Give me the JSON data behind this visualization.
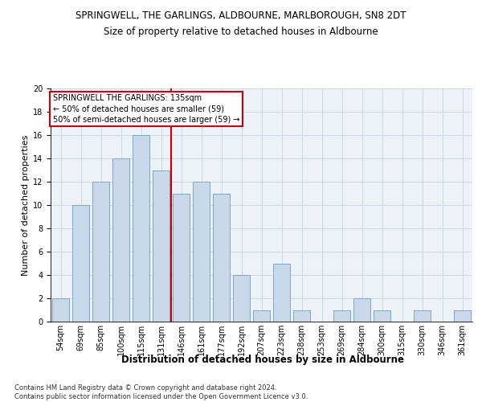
{
  "title": "SPRINGWELL, THE GARLINGS, ALDBOURNE, MARLBOROUGH, SN8 2DT",
  "subtitle": "Size of property relative to detached houses in Aldbourne",
  "xlabel": "Distribution of detached houses by size in Aldbourne",
  "ylabel": "Number of detached properties",
  "categories": [
    "54sqm",
    "69sqm",
    "85sqm",
    "100sqm",
    "115sqm",
    "131sqm",
    "146sqm",
    "161sqm",
    "177sqm",
    "192sqm",
    "207sqm",
    "223sqm",
    "238sqm",
    "253sqm",
    "269sqm",
    "284sqm",
    "300sqm",
    "315sqm",
    "330sqm",
    "346sqm",
    "361sqm"
  ],
  "values": [
    2,
    10,
    12,
    14,
    16,
    13,
    11,
    12,
    11,
    4,
    1,
    5,
    1,
    0,
    1,
    2,
    1,
    0,
    1,
    0,
    1
  ],
  "bar_color": "#c9d9ea",
  "bar_edge_color": "#7aa8c8",
  "bar_linewidth": 0.7,
  "vline_color": "#cc0000",
  "annotation_text": "SPRINGWELL THE GARLINGS: 135sqm\n← 50% of detached houses are smaller (59)\n50% of semi-detached houses are larger (59) →",
  "annotation_box_color": "#ffffff",
  "annotation_box_edge": "#cc0000",
  "ylim": [
    0,
    20
  ],
  "yticks": [
    0,
    2,
    4,
    6,
    8,
    10,
    12,
    14,
    16,
    18,
    20
  ],
  "footnote": "Contains HM Land Registry data © Crown copyright and database right 2024.\nContains public sector information licensed under the Open Government Licence v3.0.",
  "grid_color": "#c8d4e4",
  "background_color": "#edf2f8",
  "title_fontsize": 8.5,
  "subtitle_fontsize": 8.5,
  "ylabel_fontsize": 8,
  "xlabel_fontsize": 8.5,
  "tick_fontsize": 7,
  "annotation_fontsize": 7,
  "footnote_fontsize": 6
}
